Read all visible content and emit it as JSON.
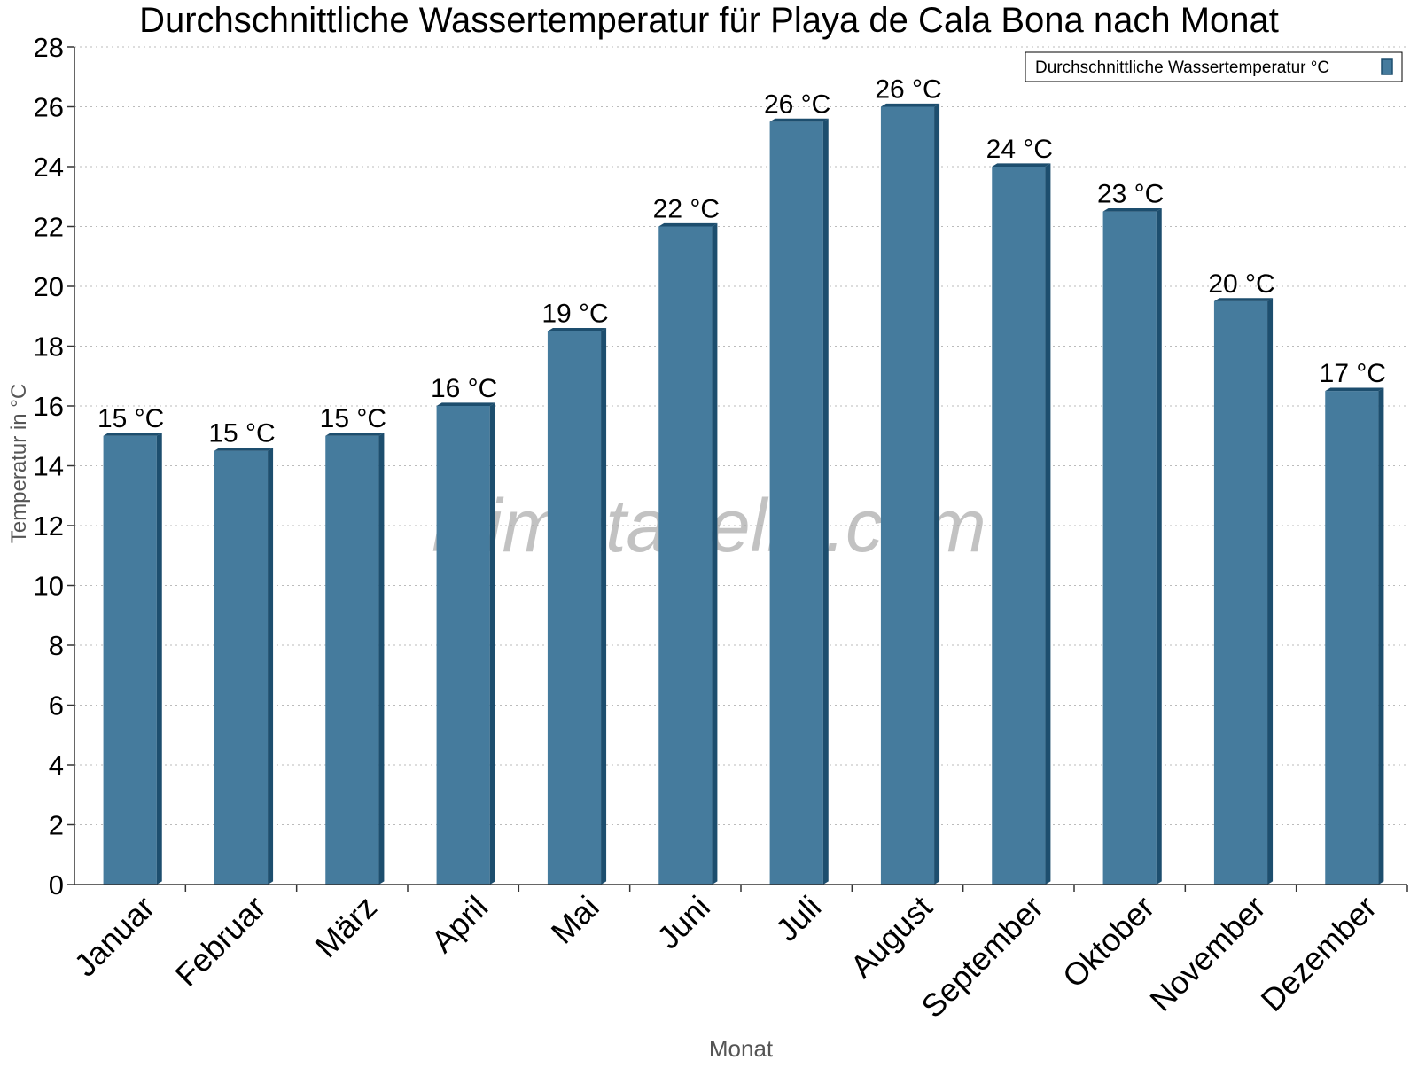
{
  "chart_data": {
    "type": "bar",
    "title": "Durchschnittliche Wassertemperatur für Playa de Cala Bona nach Monat",
    "xlabel": "Monat",
    "ylabel": "Temperatur in °C",
    "categories": [
      "Januar",
      "Februar",
      "März",
      "April",
      "Mai",
      "Juni",
      "Juli",
      "August",
      "September",
      "Oktober",
      "November",
      "Dezember"
    ],
    "series": [
      {
        "name": "Durchschnittliche Wassertemperatur °C",
        "values": [
          15,
          14.5,
          15,
          16,
          18.5,
          22,
          25.5,
          26,
          24,
          22.5,
          19.5,
          16.5
        ],
        "labels": [
          "15 °C",
          "15 °C",
          "15 °C",
          "16 °C",
          "19 °C",
          "22 °C",
          "26 °C",
          "26 °C",
          "24 °C",
          "23 °C",
          "20 °C",
          "17 °C"
        ]
      }
    ],
    "ylim": [
      0,
      28
    ],
    "yticks": [
      0,
      2,
      4,
      6,
      8,
      10,
      12,
      14,
      16,
      18,
      20,
      22,
      24,
      26,
      28
    ],
    "grid": true,
    "legend_position": "top-right",
    "colors": {
      "bar_face": "#457b9d",
      "bar_side": "#1d4e6e",
      "grid": "#bbbbbb",
      "axis": "#333333"
    }
  },
  "watermark": "klimatabelle.com"
}
